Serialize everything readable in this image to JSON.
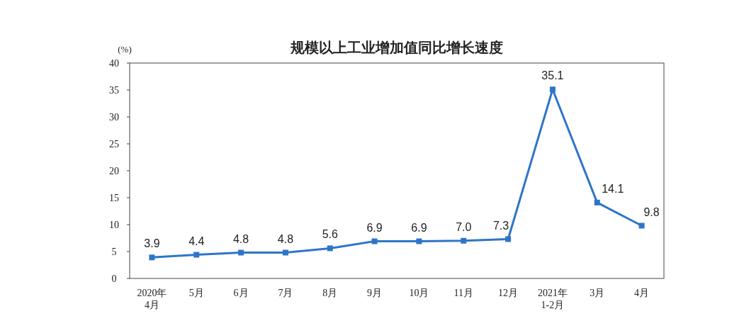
{
  "chart_data": {
    "type": "line",
    "title": "规模以上工业增加值同比增长速度",
    "ylabel": "(%)",
    "categories": [
      "2020年\n4月",
      "5月",
      "6月",
      "7月",
      "8月",
      "9月",
      "10月",
      "11月",
      "12月",
      "2021年\n1-2月",
      "3月",
      "4月"
    ],
    "series": [
      {
        "color": "#2e75c9",
        "values": [
          3.9,
          4.4,
          4.8,
          4.8,
          5.6,
          6.9,
          6.9,
          7.0,
          7.3,
          35.1,
          14.1,
          9.8
        ]
      }
    ],
    "ylim": [
      0,
      40
    ],
    "yticks": [
      0,
      5,
      10,
      15,
      20,
      25,
      30,
      35,
      40
    ],
    "value_labels": [
      "3.9",
      "4.4",
      "4.8",
      "4.8",
      "5.6",
      "6.9",
      "6.9",
      "7.0",
      "7.3",
      "35.1",
      "14.1",
      "9.8"
    ],
    "marker": "square",
    "line_style": "solid",
    "grid": false
  }
}
